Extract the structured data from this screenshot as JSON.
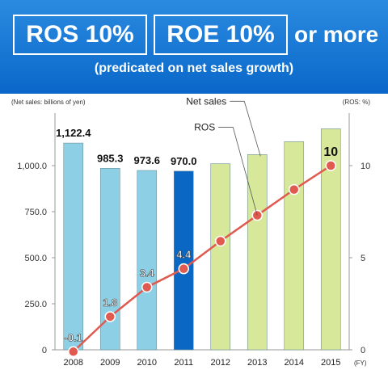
{
  "header": {
    "ros_target": "ROS 10%",
    "roe_target": "ROE 10%",
    "or_more": "or more",
    "subtitle": "(predicated on net sales growth)"
  },
  "chart_data": {
    "type": "bar",
    "left_axis_label": "(Net sales: billions of yen)",
    "right_axis_label": "(ROS: %)",
    "x_unit": "(FY)",
    "categories": [
      "2008",
      "2009",
      "2010",
      "2011",
      "2012",
      "2013",
      "2014",
      "2015"
    ],
    "left_ticks": [
      "0",
      "250.0",
      "500.0",
      "750.0",
      "1,000.0"
    ],
    "right_ticks": [
      "0",
      "5",
      "10"
    ],
    "ylim_left": [
      0,
      1250
    ],
    "ylim_right": [
      0,
      12.5
    ],
    "series": [
      {
        "name": "Net sales",
        "type": "bar",
        "values": [
          1122.4,
          985.3,
          973.6,
          970.0,
          1010,
          1060,
          1130,
          1200
        ],
        "labels": [
          "1,122.4",
          "985.3",
          "973.6",
          "970.0",
          "",
          "",
          "",
          ""
        ],
        "colors": [
          "#8dd0e6",
          "#8dd0e6",
          "#8dd0e6",
          "#0b67c4",
          "#d7e89a",
          "#d7e89a",
          "#d7e89a",
          "#d7e89a"
        ]
      },
      {
        "name": "ROS",
        "type": "line",
        "values": [
          -0.1,
          1.8,
          3.4,
          4.4,
          5.9,
          7.3,
          8.7,
          10
        ],
        "labels": [
          "-0.1",
          "1.8",
          "3.4",
          "4.4",
          "",
          "",
          "",
          "10"
        ],
        "color": "#e05a4f"
      }
    ],
    "grid": false
  }
}
